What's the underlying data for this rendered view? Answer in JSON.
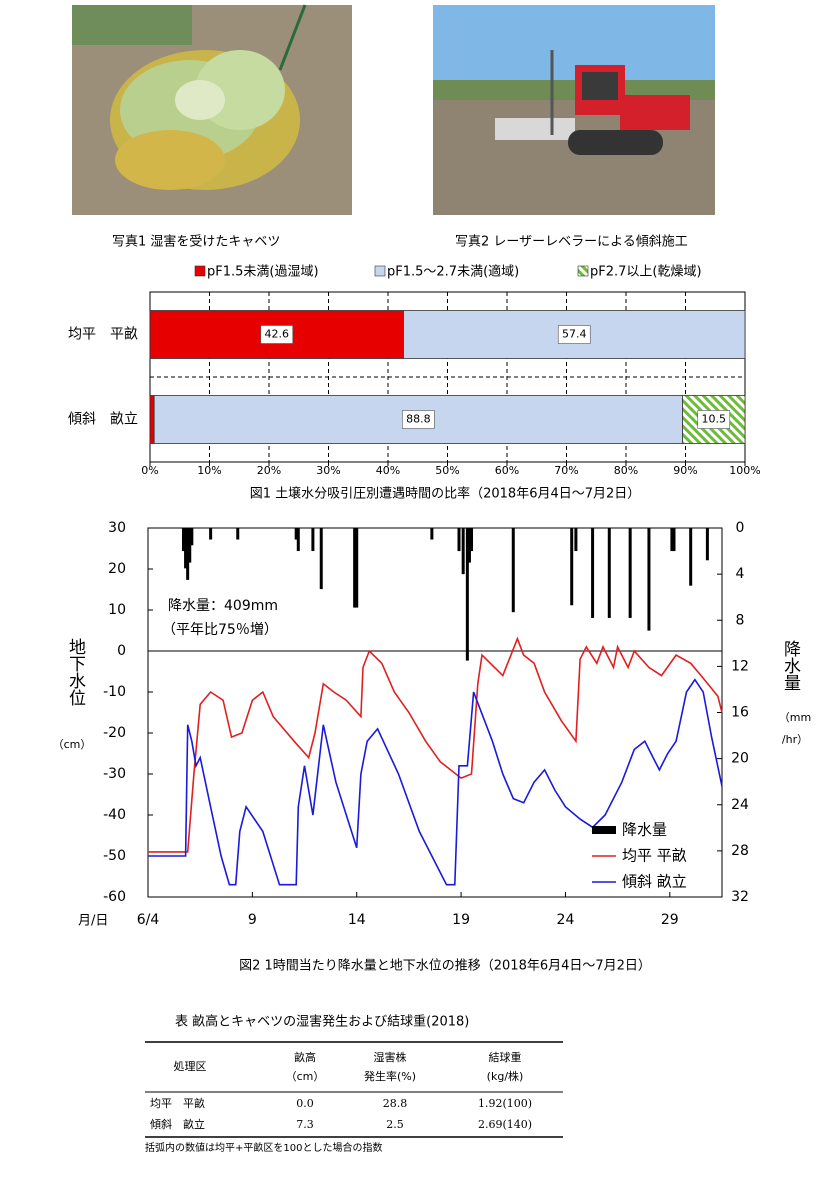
{
  "photos": [
    {
      "caption": "写真1 湿害を受けたキャベツ"
    },
    {
      "caption": "写真2 レーザーレベラーによる傾斜施工"
    }
  ],
  "chart_data": [
    {
      "type": "stacked-hbar",
      "title": "図1 土壌水分吸引圧別遭遇時間の比率（2018年6月4日～7月2日）",
      "categories": [
        "均平　平畝",
        "傾斜　畝立"
      ],
      "series": [
        {
          "name": "pF1.5未満(過湿域)",
          "color": "#e60000",
          "values": [
            42.6,
            0.7
          ]
        },
        {
          "name": "pF1.5～2.7未満(適域)",
          "color": "#c6d6ee",
          "values": [
            57.4,
            88.8
          ]
        },
        {
          "name": "pF2.7以上(乾燥域)",
          "color": "#6dbb3a",
          "hatch": true,
          "values": [
            null,
            10.5
          ]
        }
      ],
      "xlim": [
        0,
        100
      ],
      "xticks": [
        {
          "value": 0,
          "label": "0%"
        },
        {
          "value": 10,
          "label": "10%"
        },
        {
          "value": 20,
          "label": "20%"
        },
        {
          "value": 30,
          "label": "30%"
        },
        {
          "value": 40,
          "label": "40%"
        },
        {
          "value": 50,
          "label": "50%"
        },
        {
          "value": 60,
          "label": "60%"
        },
        {
          "value": 70,
          "label": "70%"
        },
        {
          "value": 80,
          "label": "80%"
        },
        {
          "value": 90,
          "label": "90%"
        },
        {
          "value": 100,
          "label": "100%"
        }
      ],
      "grid": true,
      "legend": "top"
    },
    {
      "type": "line",
      "title": "図2 1時間当たり降水量と地下水位の推移（2018年6月4日～7月2日）",
      "xlabel": "月/日",
      "ylabel": "地下水位",
      "ylabel_unit": "（cm）",
      "y2label": "降水量",
      "y2label_unit": [
        "（mm",
        "/hr）"
      ],
      "annotation": [
        "降水量：409mm",
        "（平年比75％増）"
      ],
      "xlim": [
        4,
        31.5
      ],
      "xticks": [
        {
          "value": 4,
          "label": "6/4"
        },
        9,
        14,
        19,
        24,
        29
      ],
      "ylim": [
        -60,
        30
      ],
      "yticks": [
        -60,
        -50,
        -40,
        -30,
        -20,
        -10,
        0,
        10,
        20,
        30
      ],
      "y2lim": [
        32,
        0
      ],
      "y2ticks": [
        0,
        4,
        8,
        12,
        16,
        20,
        24,
        28,
        32
      ],
      "legend": "lower right",
      "series": [
        {
          "name": "降水量",
          "type": "bar",
          "axis": "y2",
          "color": "#000000",
          "x": [
            5.7,
            5.8,
            5.9,
            6.0,
            6.1,
            7.0,
            8.3,
            11.1,
            11.2,
            11.9,
            12.3,
            13.9,
            14.0,
            17.6,
            18.9,
            19.1,
            19.3,
            19.4,
            19.5,
            21.5,
            24.3,
            24.5,
            25.3,
            26.1,
            27.1,
            28.0,
            29.1,
            29.2,
            30.0,
            30.8
          ],
          "values": [
            2,
            3.5,
            4.5,
            3,
            1.5,
            1,
            1,
            1,
            2,
            2,
            5.3,
            6.9,
            6.9,
            1,
            2,
            4,
            11.5,
            3,
            2,
            7.3,
            6.7,
            2,
            7.8,
            7.8,
            7.8,
            8.9,
            2,
            2,
            5,
            2.8
          ]
        },
        {
          "name": "均平 平畝",
          "color": "#e02020",
          "x": [
            4,
            5.9,
            6.2,
            6.5,
            7.0,
            7.6,
            8.0,
            8.5,
            9.0,
            9.5,
            10.0,
            11.0,
            11.7,
            12.0,
            12.4,
            12.9,
            13.5,
            14.2,
            14.3,
            14.6,
            15.2,
            15.8,
            16.5,
            17.3,
            18.0,
            19.0,
            19.5,
            19.8,
            20.0,
            21.0,
            21.7,
            22.0,
            22.5,
            23.0,
            23.8,
            24.5,
            24.7,
            25.0,
            25.5,
            25.8,
            26.3,
            26.5,
            27.0,
            27.3,
            28.0,
            28.6,
            29.3,
            30.0,
            30.5,
            31.3,
            31.5
          ],
          "values": [
            -49,
            -49,
            -30,
            -13,
            -10,
            -12,
            -21,
            -20,
            -12,
            -10,
            -16,
            -22,
            -26,
            -20,
            -8,
            -10,
            -12,
            -16,
            -4,
            0,
            -3,
            -10,
            -15,
            -22,
            -27,
            -31,
            -30,
            -8,
            -1,
            -6,
            3,
            -1,
            -3,
            -10,
            -17,
            -22,
            -2,
            1,
            -3,
            1,
            -4,
            1,
            -4,
            0,
            -4,
            -6,
            -1,
            -3,
            -6,
            -11,
            -15
          ]
        },
        {
          "name": "傾斜 畝立",
          "color": "#1a1adc",
          "x": [
            4,
            5.8,
            5.9,
            6.1,
            6.3,
            6.5,
            7.0,
            7.5,
            7.9,
            8.2,
            8.4,
            8.7,
            9.5,
            10.3,
            11.1,
            11.2,
            11.5,
            11.9,
            12.4,
            13.0,
            14.0,
            14.2,
            14.5,
            15.0,
            16.0,
            17.0,
            18.3,
            18.7,
            18.9,
            19.3,
            19.6,
            20.5,
            21.0,
            21.5,
            22.0,
            22.5,
            23.0,
            23.5,
            24.0,
            24.7,
            25.3,
            25.9,
            26.7,
            27.3,
            27.8,
            28.2,
            28.5,
            28.9,
            29.3,
            29.8,
            30.2,
            30.6,
            31.0,
            31.5
          ],
          "values": [
            -50,
            -50,
            -18,
            -22,
            -28,
            -26,
            -38,
            -50,
            -57,
            -57,
            -44,
            -38,
            -44,
            -57,
            -57,
            -38,
            -28,
            -40,
            -18,
            -32,
            -48,
            -30,
            -22,
            -19,
            -30,
            -44,
            -57,
            -57,
            -28,
            -28,
            -10,
            -22,
            -30,
            -36,
            -37,
            -32,
            -29,
            -34,
            -38,
            -41,
            -43,
            -40,
            -32,
            -24,
            -22,
            -26,
            -29,
            -25,
            -22,
            -10,
            -7,
            -10,
            -21,
            -33
          ]
        }
      ]
    }
  ],
  "table": {
    "caption": "表 畝高とキャベツの湿害発生および結球重(2018)",
    "header": [
      [
        "処理区"
      ],
      [
        "畝高",
        "（cm）"
      ],
      [
        "湿害株",
        "発生率(%)"
      ],
      [
        "結球重",
        "(kg/株)"
      ]
    ],
    "rows": [
      [
        "均平　平畝",
        "0.0",
        "28.8",
        "1.92(100)"
      ],
      [
        "傾斜　畝立",
        "7.3",
        "2.5",
        "2.69(140)"
      ]
    ],
    "note": "括弧内の数値は均平+平畝区を100とした場合の指数"
  }
}
